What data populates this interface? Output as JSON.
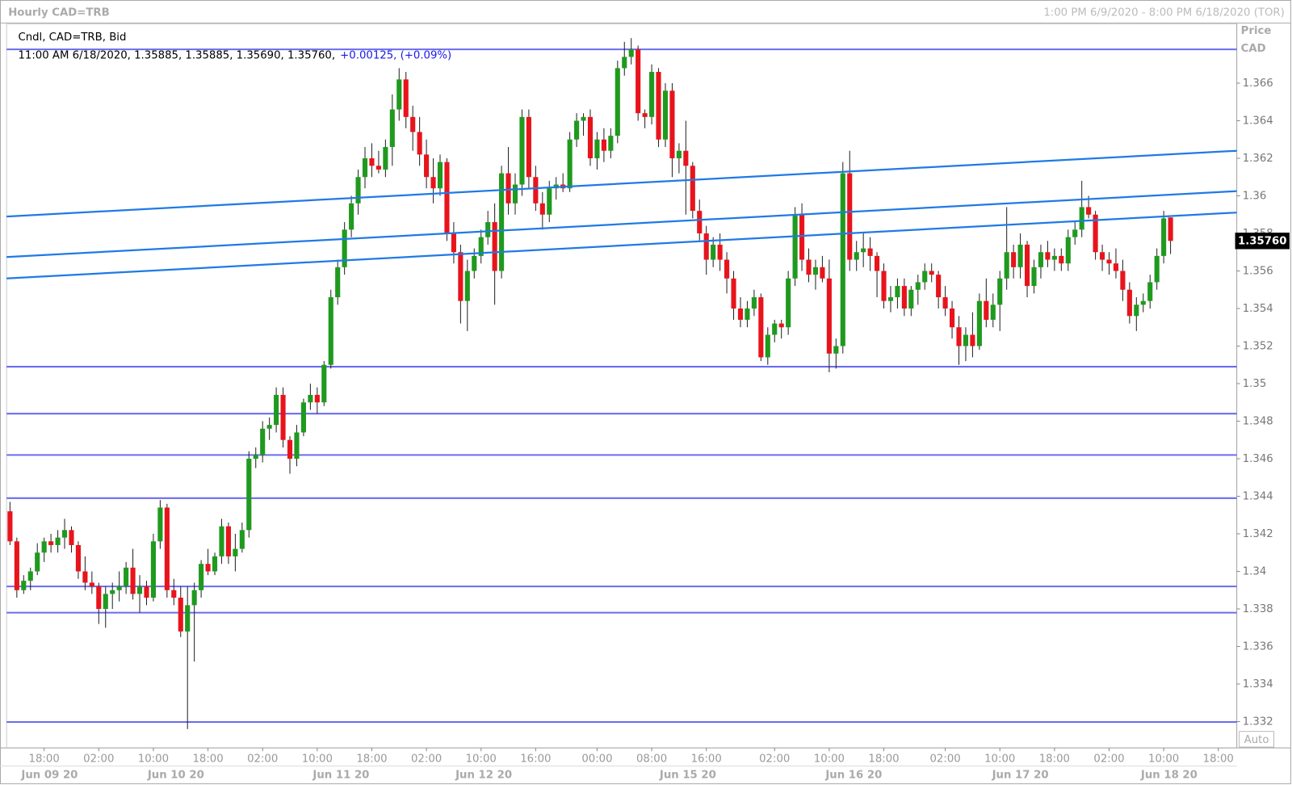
{
  "chart_data": {
    "type": "candlestick",
    "title": "Hourly CAD=TRB",
    "range_label": "1:00 PM 6/9/2020 - 8:00 PM 6/18/2020 (TOR)",
    "legend_name": "Cndl, CAD=TRB, Bid",
    "info": "11:00 AM 6/18/2020, 1.35885, 1.35885, 1.35690, 1.35760,",
    "change": "+0.00125, (+0.09%)",
    "y_label": "Price",
    "y_unit": "CAD",
    "scale_mode": "Auto",
    "up_color": "#1f9a1f",
    "down_color": "#e8141c",
    "open": [
      1.3432,
      1.3416,
      1.339,
      1.3395,
      1.34,
      1.341,
      1.3416,
      1.3414,
      1.3418,
      1.3422,
      1.3414,
      1.34,
      1.3394,
      1.3392,
      1.338,
      1.3388,
      1.339,
      1.3392,
      1.3402,
      1.3388,
      1.3392,
      1.3386,
      1.3416,
      1.3434,
      1.339,
      1.3386,
      1.3368,
      1.3382,
      1.339,
      1.3404,
      1.34,
      1.3408,
      1.3424,
      1.3408,
      1.3412,
      1.3422,
      1.346,
      1.3462,
      1.3476,
      1.3478,
      1.3494,
      1.347,
      1.346,
      1.3474,
      1.349,
      1.3494,
      1.349,
      1.351,
      1.3546,
      1.3562,
      1.3582,
      1.3596,
      1.361,
      1.362,
      1.3616,
      1.3614,
      1.3626,
      1.3646,
      1.3662,
      1.3642,
      1.3634,
      1.3622,
      1.361,
      1.3604,
      1.3618,
      1.358,
      1.357,
      1.3544,
      1.356,
      1.3568,
      1.3578,
      1.3586,
      1.356,
      1.3612,
      1.3596,
      1.3606,
      1.3642,
      1.361,
      1.3596,
      1.359,
      1.3604,
      1.3606,
      1.3604,
      1.363,
      1.364,
      1.3642,
      1.362,
      1.363,
      1.3624,
      1.3632,
      1.3668,
      1.3674,
      1.3678,
      1.3644,
      1.3642,
      1.3666,
      1.363,
      1.3656,
      1.362,
      1.3624,
      1.3616,
      1.3592,
      1.358,
      1.3566,
      1.3574,
      1.3566,
      1.3556,
      1.354,
      1.3534,
      1.354,
      1.3546,
      1.3514,
      1.3526,
      1.3532,
      1.353,
      1.3556,
      1.359,
      1.3566,
      1.3558,
      1.3562,
      1.3556,
      1.3516,
      1.352,
      1.3612,
      1.3566,
      1.357,
      1.3572,
      1.3568,
      1.356,
      1.3544,
      1.3546,
      1.3552,
      1.354,
      1.355,
      1.3554,
      1.356,
      1.3558,
      1.3546,
      1.354,
      1.353,
      1.352,
      1.3526,
      1.352,
      1.3544,
      1.3534,
      1.3542,
      1.3556,
      1.357,
      1.3562,
      1.3574,
      1.3552,
      1.3562,
      1.357,
      1.3566,
      1.3568,
      1.3564,
      1.3578,
      1.3582,
      1.3594,
      1.359,
      1.357,
      1.3566,
      1.3564,
      1.356,
      1.355,
      1.3536,
      1.3542,
      1.3544,
      1.3554,
      1.3568,
      1.35885
    ],
    "high": [
      1.3437,
      1.3418,
      1.3398,
      1.3402,
      1.3415,
      1.3418,
      1.342,
      1.3422,
      1.3428,
      1.3424,
      1.3416,
      1.3408,
      1.34,
      1.3394,
      1.3392,
      1.3394,
      1.34,
      1.3405,
      1.3412,
      1.3398,
      1.3395,
      1.342,
      1.3438,
      1.3436,
      1.3396,
      1.3392,
      1.3392,
      1.3394,
      1.3406,
      1.3412,
      1.341,
      1.3428,
      1.3426,
      1.342,
      1.3426,
      1.3464,
      1.3466,
      1.348,
      1.3482,
      1.3498,
      1.3498,
      1.3472,
      1.3478,
      1.3492,
      1.35,
      1.3498,
      1.3512,
      1.355,
      1.3566,
      1.3586,
      1.36,
      1.3614,
      1.3626,
      1.3628,
      1.3624,
      1.363,
      1.3654,
      1.3668,
      1.3666,
      1.3648,
      1.3642,
      1.363,
      1.362,
      1.3622,
      1.362,
      1.3586,
      1.3574,
      1.3566,
      1.3572,
      1.3582,
      1.3592,
      1.3596,
      1.3616,
      1.3626,
      1.3612,
      1.3646,
      1.3646,
      1.3616,
      1.3602,
      1.3608,
      1.361,
      1.3612,
      1.3634,
      1.3644,
      1.3644,
      1.3646,
      1.3634,
      1.3636,
      1.3636,
      1.3672,
      1.3682,
      1.3684,
      1.368,
      1.3646,
      1.367,
      1.3668,
      1.366,
      1.366,
      1.3628,
      1.364,
      1.3618,
      1.3598,
      1.3584,
      1.3578,
      1.358,
      1.357,
      1.356,
      1.3546,
      1.3544,
      1.355,
      1.3548,
      1.353,
      1.3534,
      1.3534,
      1.356,
      1.3594,
      1.3596,
      1.3572,
      1.3566,
      1.3568,
      1.3566,
      1.3524,
      1.3618,
      1.3624,
      1.3576,
      1.358,
      1.3578,
      1.357,
      1.3564,
      1.3552,
      1.3556,
      1.3556,
      1.3552,
      1.3558,
      1.3564,
      1.3564,
      1.356,
      1.3552,
      1.3544,
      1.3536,
      1.353,
      1.3538,
      1.3548,
      1.3556,
      1.3548,
      1.356,
      1.3594,
      1.3574,
      1.358,
      1.3576,
      1.3566,
      1.3574,
      1.3576,
      1.3572,
      1.3572,
      1.3582,
      1.3586,
      1.3608,
      1.36,
      1.3592,
      1.3574,
      1.357,
      1.3572,
      1.3566,
      1.3554,
      1.3546,
      1.3548,
      1.3558,
      1.3572,
      1.3592,
      1.35885
    ],
    "low": [
      1.3414,
      1.3386,
      1.3388,
      1.339,
      1.3398,
      1.3405,
      1.341,
      1.341,
      1.3412,
      1.341,
      1.3396,
      1.339,
      1.3388,
      1.3372,
      1.337,
      1.338,
      1.3384,
      1.3388,
      1.3385,
      1.3378,
      1.3382,
      1.3384,
      1.3412,
      1.3386,
      1.3382,
      1.3365,
      1.3316,
      1.3352,
      1.3386,
      1.3398,
      1.3398,
      1.3404,
      1.3404,
      1.34,
      1.341,
      1.3418,
      1.3455,
      1.3458,
      1.347,
      1.3474,
      1.3466,
      1.3452,
      1.3456,
      1.3472,
      1.3486,
      1.3484,
      1.3488,
      1.3508,
      1.3542,
      1.3558,
      1.3578,
      1.359,
      1.3604,
      1.361,
      1.3612,
      1.361,
      1.3616,
      1.364,
      1.3636,
      1.3624,
      1.3616,
      1.3604,
      1.3596,
      1.36,
      1.3576,
      1.3564,
      1.3532,
      1.3528,
      1.3556,
      1.3564,
      1.3574,
      1.3542,
      1.3556,
      1.359,
      1.359,
      1.36,
      1.3604,
      1.3592,
      1.3582,
      1.3586,
      1.3598,
      1.3602,
      1.3602,
      1.3626,
      1.3632,
      1.3616,
      1.3614,
      1.3618,
      1.362,
      1.3628,
      1.3664,
      1.367,
      1.364,
      1.3636,
      1.3638,
      1.3626,
      1.3626,
      1.361,
      1.3612,
      1.359,
      1.3588,
      1.3576,
      1.3558,
      1.3562,
      1.356,
      1.3548,
      1.3534,
      1.353,
      1.353,
      1.3536,
      1.3512,
      1.351,
      1.3522,
      1.3524,
      1.3526,
      1.3552,
      1.356,
      1.3554,
      1.355,
      1.3554,
      1.3506,
      1.3508,
      1.3516,
      1.356,
      1.356,
      1.3562,
      1.356,
      1.3546,
      1.354,
      1.3538,
      1.354,
      1.3536,
      1.3536,
      1.3542,
      1.355,
      1.3554,
      1.354,
      1.3536,
      1.3524,
      1.351,
      1.3512,
      1.3514,
      1.3518,
      1.353,
      1.353,
      1.3528,
      1.355,
      1.3556,
      1.3556,
      1.3546,
      1.3548,
      1.3556,
      1.3562,
      1.356,
      1.356,
      1.356,
      1.3574,
      1.3578,
      1.3588,
      1.3566,
      1.356,
      1.3558,
      1.3556,
      1.3544,
      1.3532,
      1.3528,
      1.3538,
      1.354,
      1.355,
      1.3564,
      1.3569
    ],
    "close": [
      1.3416,
      1.339,
      1.3395,
      1.34,
      1.341,
      1.3416,
      1.3414,
      1.3418,
      1.3422,
      1.3414,
      1.34,
      1.3394,
      1.3392,
      1.338,
      1.3388,
      1.339,
      1.3392,
      1.3402,
      1.3388,
      1.3392,
      1.3386,
      1.3416,
      1.3434,
      1.339,
      1.3386,
      1.3368,
      1.3382,
      1.339,
      1.3404,
      1.34,
      1.3408,
      1.3424,
      1.3408,
      1.3412,
      1.3422,
      1.346,
      1.3462,
      1.3476,
      1.3478,
      1.3494,
      1.347,
      1.346,
      1.3474,
      1.349,
      1.3494,
      1.349,
      1.351,
      1.3546,
      1.3562,
      1.3582,
      1.3596,
      1.361,
      1.362,
      1.3616,
      1.3614,
      1.3626,
      1.3646,
      1.3662,
      1.3642,
      1.3634,
      1.3622,
      1.361,
      1.3604,
      1.3618,
      1.358,
      1.357,
      1.3544,
      1.356,
      1.3568,
      1.3578,
      1.3586,
      1.356,
      1.3612,
      1.3596,
      1.3606,
      1.3642,
      1.361,
      1.3596,
      1.359,
      1.3604,
      1.3606,
      1.3604,
      1.363,
      1.364,
      1.3642,
      1.362,
      1.363,
      1.3624,
      1.3632,
      1.3668,
      1.3674,
      1.3678,
      1.3644,
      1.3642,
      1.3666,
      1.363,
      1.3656,
      1.362,
      1.3624,
      1.3616,
      1.3592,
      1.358,
      1.3566,
      1.3574,
      1.3566,
      1.3556,
      1.354,
      1.3534,
      1.354,
      1.3546,
      1.3514,
      1.3526,
      1.3532,
      1.353,
      1.3556,
      1.359,
      1.3566,
      1.3558,
      1.3562,
      1.3556,
      1.3516,
      1.352,
      1.3612,
      1.3566,
      1.357,
      1.3572,
      1.3568,
      1.356,
      1.3544,
      1.3546,
      1.3552,
      1.354,
      1.355,
      1.3554,
      1.356,
      1.3558,
      1.3546,
      1.354,
      1.353,
      1.352,
      1.3526,
      1.352,
      1.3544,
      1.3534,
      1.3542,
      1.3556,
      1.357,
      1.3562,
      1.3574,
      1.3552,
      1.3562,
      1.357,
      1.3566,
      1.3568,
      1.3564,
      1.3578,
      1.3582,
      1.3594,
      1.359,
      1.357,
      1.3566,
      1.3564,
      1.356,
      1.355,
      1.3536,
      1.3542,
      1.3544,
      1.3554,
      1.3568,
      1.3588,
      1.3576
    ],
    "xlim": [
      -0.5,
      179.7
    ],
    "xticks": [
      {
        "value": 5,
        "label": "18:00"
      },
      {
        "value": 13,
        "label": "02:00"
      },
      {
        "value": 21,
        "label": "10:00"
      },
      {
        "value": 29,
        "label": "18:00"
      },
      {
        "value": 37,
        "label": "02:00"
      },
      {
        "value": 45,
        "label": "10:00"
      },
      {
        "value": 53,
        "label": "18:00"
      },
      {
        "value": 61,
        "label": "02:00"
      },
      {
        "value": 69,
        "label": "10:00"
      },
      {
        "value": 77,
        "label": "16:00"
      },
      {
        "value": 86,
        "label": "00:00"
      },
      {
        "value": 94,
        "label": "08:00"
      },
      {
        "value": 102,
        "label": "16:00"
      },
      {
        "value": 112,
        "label": "02:00"
      },
      {
        "value": 120,
        "label": "10:00"
      },
      {
        "value": 128,
        "label": "18:00"
      },
      {
        "value": 137,
        "label": "02:00"
      },
      {
        "value": 145,
        "label": "10:00"
      },
      {
        "value": 153,
        "label": "18:00"
      },
      {
        "value": 161,
        "label": "02:00"
      },
      {
        "value": 169,
        "label": "10:00"
      },
      {
        "value": 177,
        "label": "18:00"
      }
    ],
    "date_ticks": [
      {
        "value": 5.8,
        "label": "Jun 09 20"
      },
      {
        "value": 24.3,
        "label": "Jun 10 20"
      },
      {
        "value": 48.5,
        "label": "Jun 11 20"
      },
      {
        "value": 69.4,
        "label": "Jun 12 20"
      },
      {
        "value": 99.3,
        "label": "Jun 15 20"
      },
      {
        "value": 123.6,
        "label": "Jun 16 20"
      },
      {
        "value": 148,
        "label": "Jun 17 20"
      },
      {
        "value": 169.8,
        "label": "Jun 18 20"
      }
    ],
    "ylim": [
      1.3306,
      1.3692
    ],
    "yticks": [
      1.332,
      1.334,
      1.336,
      1.338,
      1.34,
      1.342,
      1.344,
      1.346,
      1.348,
      1.35,
      1.352,
      1.354,
      1.356,
      1.358,
      1.36,
      1.362,
      1.364,
      1.366
    ],
    "horizontal_lines": {
      "color": "#6b6bef",
      "values": [
        1.3678,
        1.3509,
        1.3484,
        1.3462,
        1.3439,
        1.3392,
        1.3378,
        1.33198
      ]
    },
    "trend_lines": {
      "color": "#1f7ae6",
      "lines": [
        {
          "x": [
            -0.5,
            179.7
          ],
          "y": [
            1.3589,
            1.3624
          ]
        },
        {
          "x": [
            -0.5,
            179.7
          ],
          "y": [
            1.35674,
            1.36025
          ]
        },
        {
          "x": [
            -0.5,
            179.7
          ],
          "y": [
            1.3556,
            1.35911
          ]
        }
      ]
    },
    "last_price": {
      "value": 1.3576,
      "label": "1.35760"
    }
  }
}
